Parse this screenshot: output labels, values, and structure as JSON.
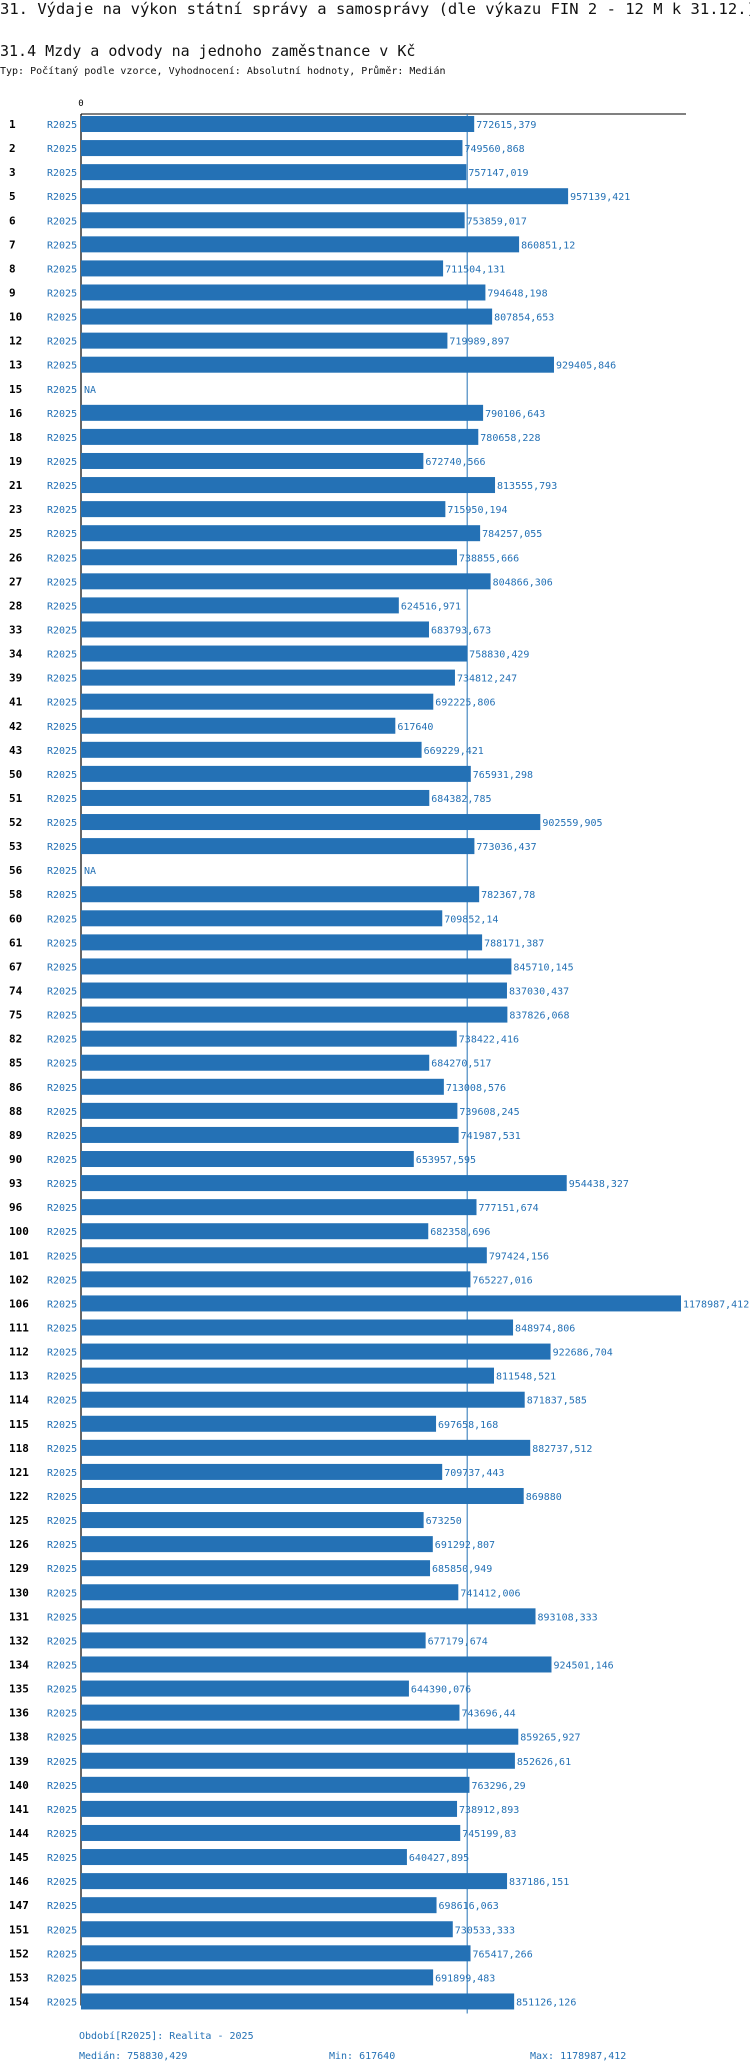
{
  "title": "31. Výdaje na výkon státní správy a samosprávy (dle výkazu FIN 2 - 12 M k 31.12.)",
  "subtitle": "31.4 Mzdy a odvody na jednoho zaměstnance v Kč",
  "description": "Typ: Počítaný podle vzorce, Vyhodnocení: Absolutní hodnoty, Průměr: Medián",
  "chart_data": {
    "type": "bar",
    "orientation": "horizontal",
    "title": "31.4 Mzdy a odvody na jednoho zaměstnance v Kč",
    "x_axis_min_label": "0",
    "xlim": [
      0,
      1178987.412
    ],
    "period_label": "R2025",
    "bar_color": "#2471b5",
    "median_line_color": "#2471b5",
    "median": 758830.429,
    "na_label": "NA",
    "categories": [
      "1",
      "2",
      "3",
      "5",
      "6",
      "7",
      "8",
      "9",
      "10",
      "12",
      "13",
      "15",
      "16",
      "18",
      "19",
      "21",
      "23",
      "25",
      "26",
      "27",
      "28",
      "33",
      "34",
      "39",
      "41",
      "42",
      "43",
      "50",
      "51",
      "52",
      "53",
      "56",
      "58",
      "60",
      "61",
      "67",
      "74",
      "75",
      "82",
      "85",
      "86",
      "88",
      "89",
      "90",
      "93",
      "96",
      "100",
      "101",
      "102",
      "106",
      "111",
      "112",
      "113",
      "114",
      "115",
      "118",
      "121",
      "122",
      "125",
      "126",
      "129",
      "130",
      "131",
      "132",
      "134",
      "135",
      "136",
      "138",
      "139",
      "140",
      "141",
      "144",
      "145",
      "146",
      "147",
      "151",
      "152",
      "153",
      "154"
    ],
    "values": [
      772615.379,
      749560.868,
      757147.019,
      957139.421,
      753859.017,
      860851.12,
      711504.131,
      794648.198,
      807854.653,
      719989.897,
      929405.846,
      null,
      790106.643,
      780658.228,
      672740.566,
      813555.793,
      715950.194,
      784257.055,
      738855.666,
      804866.306,
      624516.971,
      683793.673,
      758830.429,
      734812.247,
      692225.806,
      617640,
      669229.421,
      765931.298,
      684382.785,
      902559.905,
      773036.437,
      null,
      782367.78,
      709852.14,
      788171.387,
      845710.145,
      837030.437,
      837826.068,
      738422.416,
      684270.517,
      713008.576,
      739608.245,
      741987.531,
      653957.595,
      954438.327,
      777151.674,
      682358.696,
      797424.156,
      765227.016,
      1178987.412,
      848974.806,
      922686.704,
      811548.521,
      871837.585,
      697658.168,
      882737.512,
      709737.443,
      869880,
      673250,
      691292.807,
      685850.949,
      741412.006,
      893108.333,
      677179.674,
      924501.146,
      644390.076,
      743696.44,
      859265.927,
      852626.61,
      763296.29,
      738912.893,
      745199.83,
      640427.895,
      837186.151,
      698616.063,
      730533.333,
      765417.266,
      691899.483,
      851126.126
    ],
    "value_labels": [
      "772615,379",
      "749560,868",
      "757147,019",
      "957139,421",
      "753859,017",
      "860851,12",
      "711504,131",
      "794648,198",
      "807854,653",
      "719989,897",
      "929405,846",
      "NA",
      "790106,643",
      "780658,228",
      "672740,566",
      "813555,793",
      "715950,194",
      "784257,055",
      "738855,666",
      "804866,306",
      "624516,971",
      "683793,673",
      "758830,429",
      "734812,247",
      "692225,806",
      "617640",
      "669229,421",
      "765931,298",
      "684382,785",
      "902559,905",
      "773036,437",
      "NA",
      "782367,78",
      "709852,14",
      "788171,387",
      "845710,145",
      "837030,437",
      "837826,068",
      "738422,416",
      "684270,517",
      "713008,576",
      "739608,245",
      "741987,531",
      "653957,595",
      "954438,327",
      "777151,674",
      "682358,696",
      "797424,156",
      "765227,016",
      "1178987,412",
      "848974,806",
      "922686,704",
      "811548,521",
      "871837,585",
      "697658,168",
      "882737,512",
      "709737,443",
      "869880",
      "673250",
      "691292,807",
      "685850,949",
      "741412,006",
      "893108,333",
      "677179,674",
      "924501,146",
      "644390,076",
      "743696,44",
      "859265,927",
      "852626,61",
      "763296,29",
      "738912,893",
      "745199,83",
      "640427,895",
      "837186,151",
      "698616,063",
      "730533,333",
      "765417,266",
      "691899,483",
      "851126,126"
    ]
  },
  "footer": {
    "period": "Období[R2025]: Realita - 2025",
    "median": "Medián: 758830,429",
    "min": "Min: 617640",
    "max": "Max: 1178987,412"
  }
}
